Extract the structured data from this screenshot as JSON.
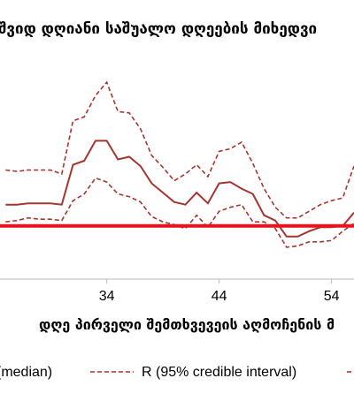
{
  "chart_data": {
    "type": "line",
    "title": "შვიდ დღიანი საშუალო დღეების მიხედვი",
    "xlabel": "დღე პირველი შემთხვევეის აღმოჩენის მ",
    "ylabel": "",
    "x_ticks": [
      34,
      44,
      54
    ],
    "xlim": [
      24.5,
      56
    ],
    "ylim": [
      0.6,
      2.3
    ],
    "x": [
      25,
      26,
      27,
      28,
      29,
      30,
      31,
      32,
      33,
      34,
      35,
      36,
      37,
      38,
      39,
      40,
      41,
      42,
      43,
      44,
      45,
      46,
      47,
      48,
      49,
      50,
      51,
      52,
      53,
      54,
      55,
      56
    ],
    "series": [
      {
        "name": "(median)",
        "style": "solid",
        "color": "#a6342f",
        "values": [
          1.16,
          1.16,
          1.17,
          1.17,
          1.17,
          1.16,
          1.46,
          1.49,
          1.64,
          1.64,
          1.5,
          1.52,
          1.45,
          1.32,
          1.25,
          1.18,
          1.16,
          1.25,
          1.17,
          1.32,
          1.33,
          1.28,
          1.24,
          1.08,
          1.04,
          0.92,
          0.92,
          0.96,
          0.99,
          0.99,
          1.0,
          1.1
        ]
      },
      {
        "name": "R (95% credible interval)",
        "style": "dashed",
        "color": "#a6342f",
        "values": [
          1.42,
          1.41,
          1.42,
          1.42,
          1.42,
          1.39,
          1.79,
          1.82,
          1.98,
          2.08,
          1.86,
          1.85,
          1.73,
          1.53,
          1.44,
          1.34,
          1.39,
          1.46,
          1.37,
          1.56,
          1.58,
          1.63,
          1.47,
          1.28,
          1.14,
          1.06,
          1.06,
          1.11,
          1.16,
          1.19,
          1.21,
          1.45
        ]
      },
      {
        "name": "",
        "style": "dashed",
        "color": "#a6342f",
        "values": [
          1.03,
          1.04,
          1.06,
          1.05,
          1.05,
          1.04,
          1.19,
          1.24,
          1.36,
          1.33,
          1.24,
          1.22,
          1.18,
          1.07,
          1.03,
          1.01,
          0.98,
          1.08,
          0.99,
          1.11,
          1.14,
          1.16,
          1.03,
          1.03,
          0.98,
          0.84,
          0.85,
          0.88,
          0.88,
          0.89,
          0.96,
          1.02
        ]
      }
    ],
    "reference_line": {
      "y": 1.0,
      "color": "#e8141b"
    },
    "legend": {
      "placement": "bottom",
      "items": [
        {
          "label": "(median)",
          "style": "solid"
        },
        {
          "label": "R (95% credible interval)",
          "style": "dashed"
        }
      ]
    },
    "grid": false
  }
}
